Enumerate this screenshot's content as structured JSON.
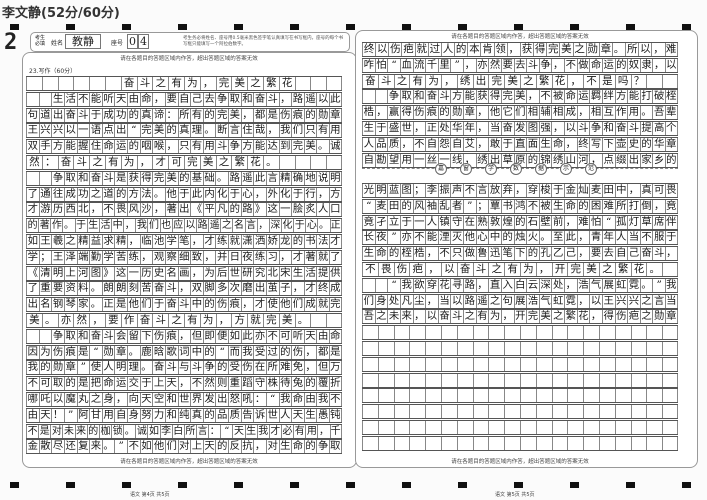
{
  "top_title": "李文静(52分/60分)",
  "page_number": "2",
  "info": {
    "must_fill": "考生必填",
    "name_label": "姓名",
    "name_value": "教静",
    "seat_label": "座号",
    "seat_digits": [
      "0",
      "4"
    ],
    "note": "考生务必将姓名、座号用0.5毫米黑色签字笔认真填写在书写框内，座号的每个书写框只能填写一个阿拉伯数字。"
  },
  "warning": "请在各题目的答题区域内作答，超出答题区域的答案无效",
  "question": "23.写作（60分）",
  "left_rows": [
    "      奋斗之有为，完美之繁花",
    "  生活不能听天由命，要自己去争取和奋斗，路遥以此",
    "句道出奋斗于成功的真谛：所有的完美，都是伤痕的勋章",
    "王兴兴以一语点出“完美的真理。断言住哉，我们只有用",
    "双手方能握住命运的咽喉，只有用斗争方能达到完美。诚",
    "然：奋斗之有为，才可完美之繁花。",
    "  争取和奋斗是获得完美的基础。路遥此言精确地说明",
    "了通往成功之道的方法。他于此内化于心，外化于行，方",
    "才游历西北，不畏风沙，著出《平凡的路》这一脍炙人口",
    "的著作。于生活中，我们也应以路遥之名言，深化于心。正",
    "如王羲之精益求精，临池学笔，才练就潇洒娇龙的书法才",
    "学；王泽端勤学苦练，观察细致，并日夜练习，才著就了",
    "《清明上河图》这一历史名画，为后世研究北宋生活提供",
    "了重要资料。朗朗刻苦奋斗，双脚多次磨出茧子，才终成",
    "出名钢琴家。正是他们于奋斗中的伤痕，才使他们成就完",
    "美。亦然，要作奋斗之有为，方就完美。",
    "  争取和奋斗会留下伤痕，但即便如此亦不可听天由命",
    "因为伤痕是“勋章。鹿晗歌词中的“而我受过的伤，都是",
    "我的勋章”使人明理。奋斗与斗争的受伤在所难免，但万",
    "不可取的是把命运交于上天，不然则重蹈守株待兔的覆折",
    "哪吒以魔丸之身，向天空和世界发出怒吼：“我命由我不",
    "由天！”阿甘用自身努力和纯真的品质告诉世人天生愚钝",
    "不是对未来的枷锁。诚如李白所言：“天生我才必有用，千",
    "金散尽还复来。”不如他们对上天的反抗，对生命的争取"
  ],
  "right_rows_top": [
    "终以伤疤就过人的本肯领，获得完美之勋章。所以，难",
    "咋怕“血流千里”，亦然要去斗争，不做命运的奴隶，以",
    "奋斗之有为，绣出完美之繁花，不是吗？",
    "  争取和奋斗方能获得完美，不被命运羁绊方能打破桎",
    "梏，赢得伤痕的勋章，他它们相辅相成，相互作用。吾辈",
    "生于盛世，正处华年，当奋发图强，以斗争和奋斗提高个",
    "人品质，不自怨自艾，敢于直面生命，终写下壶史的华章",
    "自勘望用一丝一线，绣出草原的锦绣山河，点缀出家乡的"
  ],
  "separator_chars": [
    "嘉",
    "窗",
    "学",
    "数",
    "据",
    "示",
    "范"
  ],
  "right_rows_bottom": [
    "光明蓝图；李振声不言放弃，穿梭于金灿麦田中，真可畏",
    "“麦田的风袖乱者”；覃书鸿不被生命的困难所打倒，竟",
    "竟孑立于一人镇守在熟敦煌的石壁前，难怕“孤灯草席伴",
    "长夜”亦不能湮灭他心中的烛火。至此，青年人当不服于",
    "生命的桎梏，不只做鲁迅笔下的孔乙己，要去自己奋斗，",
    "不畏伤疤，以奋斗之有为，开完美之繁花。",
    "  “我欲穿花寻路，直入白云深处，浩气展虹霓。”我",
    "们身处凡尘，当以路遥之句展浩气虹霓，以王兴兴之言当",
    "吾之未来，以奋斗之有为，开完美之繁花，得伤疤之勋章",
    "",
    "",
    "",
    "",
    "",
    "",
    "",
    ""
  ],
  "footer_left": "语文  第4页  共5页",
  "footer_right": "语文  第5页  共5页"
}
